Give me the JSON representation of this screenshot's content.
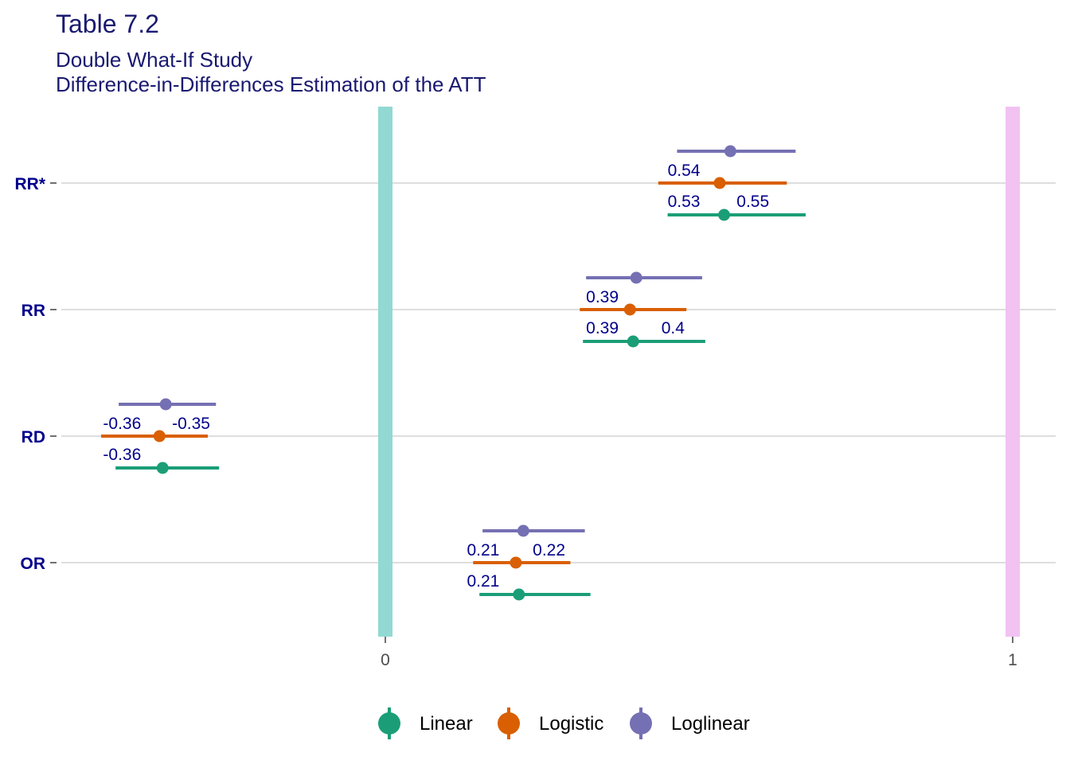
{
  "chart_data": {
    "type": "forest",
    "title": "Table 7.2",
    "subtitle_lines": [
      "Double What-If Study",
      "Difference-in-Differences Estimation of the ATT"
    ],
    "categories": [
      "RR*",
      "RR",
      "RD",
      "OR"
    ],
    "x_ticks": [
      "0",
      "1"
    ],
    "xlim": [
      -0.525,
      1.04
    ],
    "reference_lines": [
      {
        "x": 0,
        "color": "#92D9D3"
      },
      {
        "x": 1,
        "color": "#F2C2F2"
      }
    ],
    "grid": true,
    "legend_position": "bottom",
    "series": [
      {
        "name": "Linear",
        "color": "#1B9E77",
        "points": [
          {
            "category": "RR*",
            "estimate": 0.54,
            "lower": 0.45,
            "upper": 0.67
          },
          {
            "category": "RR",
            "estimate": 0.395,
            "lower": 0.315,
            "upper": 0.51
          },
          {
            "category": "RD",
            "estimate": -0.355,
            "lower": -0.43,
            "upper": -0.265
          },
          {
            "category": "OR",
            "estimate": 0.213,
            "lower": 0.15,
            "upper": 0.327
          }
        ]
      },
      {
        "name": "Logistic",
        "color": "#D95F02",
        "points": [
          {
            "category": "RR*",
            "estimate": 0.533,
            "lower": 0.435,
            "upper": 0.64
          },
          {
            "category": "RR",
            "estimate": 0.39,
            "lower": 0.31,
            "upper": 0.48
          },
          {
            "category": "RD",
            "estimate": -0.36,
            "lower": -0.453,
            "upper": -0.283
          },
          {
            "category": "OR",
            "estimate": 0.208,
            "lower": 0.14,
            "upper": 0.295
          }
        ]
      },
      {
        "name": "Loglinear",
        "color": "#7570B3",
        "points": [
          {
            "category": "RR*",
            "estimate": 0.55,
            "lower": 0.465,
            "upper": 0.654
          },
          {
            "category": "RR",
            "estimate": 0.4,
            "lower": 0.32,
            "upper": 0.505
          },
          {
            "category": "RD",
            "estimate": -0.35,
            "lower": -0.425,
            "upper": -0.27
          },
          {
            "category": "OR",
            "estimate": 0.22,
            "lower": 0.155,
            "upper": 0.318
          }
        ]
      }
    ],
    "data_labels": [
      {
        "category": "RR*",
        "text": "0.54",
        "x": 0.45,
        "slot": "upper"
      },
      {
        "category": "RR*",
        "text": "0.53",
        "x": 0.45,
        "slot": "lower"
      },
      {
        "category": "RR*",
        "text": "0.55",
        "x": 0.56,
        "slot": "lower"
      },
      {
        "category": "RR",
        "text": "0.39",
        "x": 0.32,
        "slot": "upper"
      },
      {
        "category": "RR",
        "text": "0.39",
        "x": 0.32,
        "slot": "lower"
      },
      {
        "category": "RR",
        "text": "0.4",
        "x": 0.44,
        "slot": "lower"
      },
      {
        "category": "RD",
        "text": "-0.36",
        "x": -0.45,
        "slot": "upper"
      },
      {
        "category": "RD",
        "text": "-0.35",
        "x": -0.34,
        "slot": "upper"
      },
      {
        "category": "RD",
        "text": "-0.36",
        "x": -0.45,
        "slot": "lower"
      },
      {
        "category": "OR",
        "text": "0.21",
        "x": 0.13,
        "slot": "upper"
      },
      {
        "category": "OR",
        "text": "0.22",
        "x": 0.235,
        "slot": "upper"
      },
      {
        "category": "OR",
        "text": "0.21",
        "x": 0.13,
        "slot": "lower"
      }
    ]
  }
}
